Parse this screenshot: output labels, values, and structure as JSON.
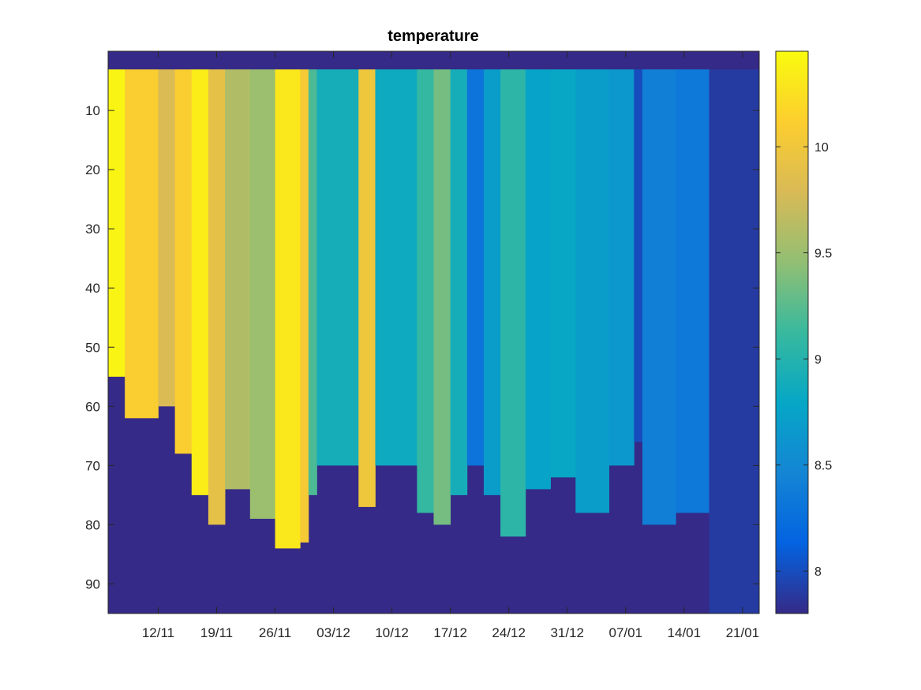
{
  "chart_data": {
    "type": "heatmap",
    "title": "temperature",
    "xlabel": "",
    "ylabel": "",
    "x_tick_labels": [
      "12/11",
      "19/11",
      "26/11",
      "03/12",
      "10/12",
      "17/12",
      "24/12",
      "31/12",
      "07/01",
      "14/01",
      "21/01"
    ],
    "x_tick_dates": [
      "2019-11-12",
      "2019-11-19",
      "2019-11-26",
      "2019-12-03",
      "2019-12-10",
      "2019-12-17",
      "2019-12-24",
      "2019-12-31",
      "2020-01-07",
      "2020-01-14",
      "2020-01-21"
    ],
    "xlim": [
      "2019-11-06",
      "2020-01-23"
    ],
    "y_ticks": [
      10,
      20,
      30,
      40,
      50,
      60,
      70,
      80,
      90
    ],
    "ylim": [
      0,
      95
    ],
    "y_reversed": true,
    "colorbar": {
      "ticks": [
        8,
        8.5,
        9,
        9.5,
        10
      ],
      "range": [
        7.8,
        10.45
      ],
      "colormap": "parula"
    },
    "fill_color": "#352a87",
    "grid": false,
    "column_profiles": [
      {
        "start": "2019-11-06",
        "end": "2019-11-08",
        "temp": 10.4,
        "bottom": 55
      },
      {
        "start": "2019-11-08",
        "end": "2019-11-12",
        "temp": 10.1,
        "bottom": 62
      },
      {
        "start": "2019-11-12",
        "end": "2019-11-14",
        "temp": 9.8,
        "bottom": 60
      },
      {
        "start": "2019-11-14",
        "end": "2019-11-16",
        "temp": 10.1,
        "bottom": 68
      },
      {
        "start": "2019-11-16",
        "end": "2019-11-18",
        "temp": 10.35,
        "bottom": 75
      },
      {
        "start": "2019-11-18",
        "end": "2019-11-20",
        "temp": 9.9,
        "bottom": 80
      },
      {
        "start": "2019-11-20",
        "end": "2019-11-23",
        "temp": 9.6,
        "bottom": 74
      },
      {
        "start": "2019-11-23",
        "end": "2019-11-26",
        "temp": 9.5,
        "bottom": 79
      },
      {
        "start": "2019-11-26",
        "end": "2019-11-29",
        "temp": 10.3,
        "bottom": 84
      },
      {
        "start": "2019-11-29",
        "end": "2019-11-30",
        "temp": 10.05,
        "bottom": 83
      },
      {
        "start": "2019-11-30",
        "end": "2019-12-01",
        "temp": 9.2,
        "bottom": 75
      },
      {
        "start": "2019-12-01",
        "end": "2019-12-06",
        "temp": 8.9,
        "bottom": 70
      },
      {
        "start": "2019-12-06",
        "end": "2019-12-08",
        "temp": 10.0,
        "bottom": 77
      },
      {
        "start": "2019-12-08",
        "end": "2019-12-13",
        "temp": 8.85,
        "bottom": 70
      },
      {
        "start": "2019-12-13",
        "end": "2019-12-15",
        "temp": 9.1,
        "bottom": 78
      },
      {
        "start": "2019-12-15",
        "end": "2019-12-17",
        "temp": 9.35,
        "bottom": 80
      },
      {
        "start": "2019-12-17",
        "end": "2019-12-19",
        "temp": 8.9,
        "bottom": 75
      },
      {
        "start": "2019-12-19",
        "end": "2019-12-21",
        "temp": 8.3,
        "bottom": 70
      },
      {
        "start": "2019-12-21",
        "end": "2019-12-23",
        "temp": 8.7,
        "bottom": 75
      },
      {
        "start": "2019-12-23",
        "end": "2019-12-26",
        "temp": 9.05,
        "bottom": 82
      },
      {
        "start": "2019-12-26",
        "end": "2019-12-29",
        "temp": 8.75,
        "bottom": 74
      },
      {
        "start": "2019-12-29",
        "end": "2020-01-01",
        "temp": 8.8,
        "bottom": 72
      },
      {
        "start": "2020-01-01",
        "end": "2020-01-05",
        "temp": 8.7,
        "bottom": 78
      },
      {
        "start": "2020-01-05",
        "end": "2020-01-08",
        "temp": 8.65,
        "bottom": 70
      },
      {
        "start": "2020-01-08",
        "end": "2020-01-09",
        "temp": 8.0,
        "bottom": 66
      },
      {
        "start": "2020-01-09",
        "end": "2020-01-13",
        "temp": 8.4,
        "bottom": 80
      },
      {
        "start": "2020-01-13",
        "end": "2020-01-17",
        "temp": 8.35,
        "bottom": 78
      },
      {
        "start": "2020-01-17",
        "end": "2020-01-23",
        "temp": 7.9,
        "bottom": 95
      }
    ]
  }
}
